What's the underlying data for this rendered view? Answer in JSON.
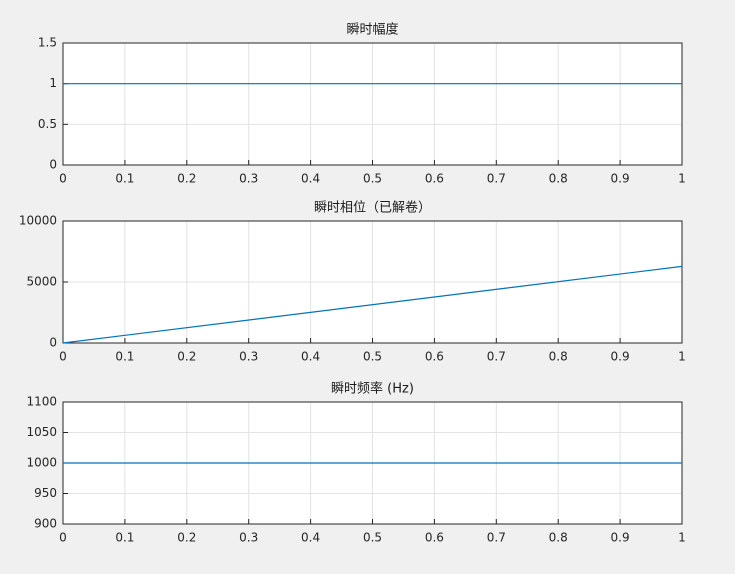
{
  "chart_data": [
    {
      "type": "line",
      "title": "瞬时幅度",
      "x": [
        0,
        1
      ],
      "values": [
        1,
        1
      ],
      "color": "#0072bd",
      "xlim": [
        0,
        1
      ],
      "xticks": [
        0,
        0.1,
        0.2,
        0.3,
        0.4,
        0.5,
        0.6,
        0.7,
        0.8,
        0.9,
        1
      ],
      "ylim": [
        0,
        1.5
      ],
      "yticks": [
        0,
        0.5,
        1,
        1.5
      ],
      "grid": true
    },
    {
      "type": "line",
      "title": "瞬时相位（已解卷）",
      "x": [
        0,
        1
      ],
      "values": [
        0,
        6283
      ],
      "color": "#0072bd",
      "xlim": [
        0,
        1
      ],
      "xticks": [
        0,
        0.1,
        0.2,
        0.3,
        0.4,
        0.5,
        0.6,
        0.7,
        0.8,
        0.9,
        1
      ],
      "ylim": [
        0,
        10000
      ],
      "yticks": [
        0,
        5000,
        10000
      ],
      "grid": true
    },
    {
      "type": "line",
      "title": "瞬时频率 (Hz)",
      "x": [
        0,
        1
      ],
      "values": [
        1000,
        1000
      ],
      "color": "#0072bd",
      "xlim": [
        0,
        1
      ],
      "xticks": [
        0,
        0.1,
        0.2,
        0.3,
        0.4,
        0.5,
        0.6,
        0.7,
        0.8,
        0.9,
        1
      ],
      "ylim": [
        900,
        1100
      ],
      "yticks": [
        900,
        950,
        1000,
        1050,
        1100
      ],
      "grid": true
    }
  ]
}
